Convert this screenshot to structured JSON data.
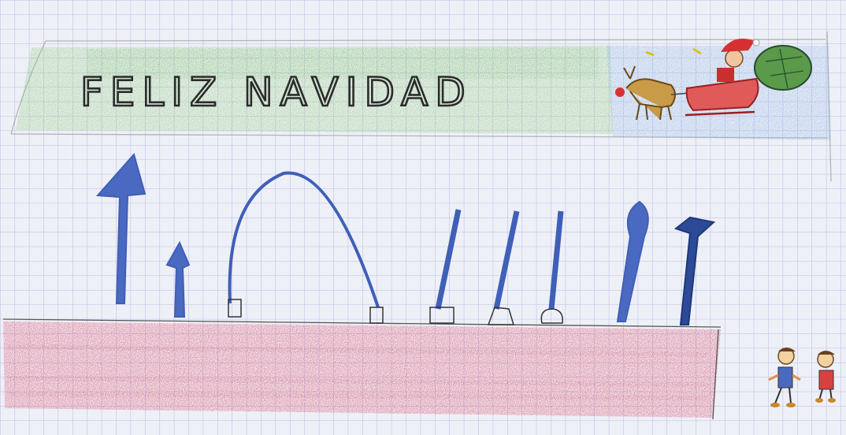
{
  "drawing": {
    "title_text": "FELIZ NAVIDAD",
    "colors": {
      "paper": "#eef0f7",
      "grid_line": "#b9bde6",
      "banner_green": "#7fc36a",
      "sky_blue": "#9cc0e6",
      "table_red": "#d9546e",
      "utensil_blue": "#3f5fb8",
      "sleigh_red": "#d84a4a",
      "reindeer_brown": "#b8873a",
      "pencil_text": "#2b2b2b"
    },
    "icons": [
      "santa-sleigh-icon",
      "reindeer-icon",
      "gift-sack-icon",
      "child-figure-icon"
    ]
  }
}
